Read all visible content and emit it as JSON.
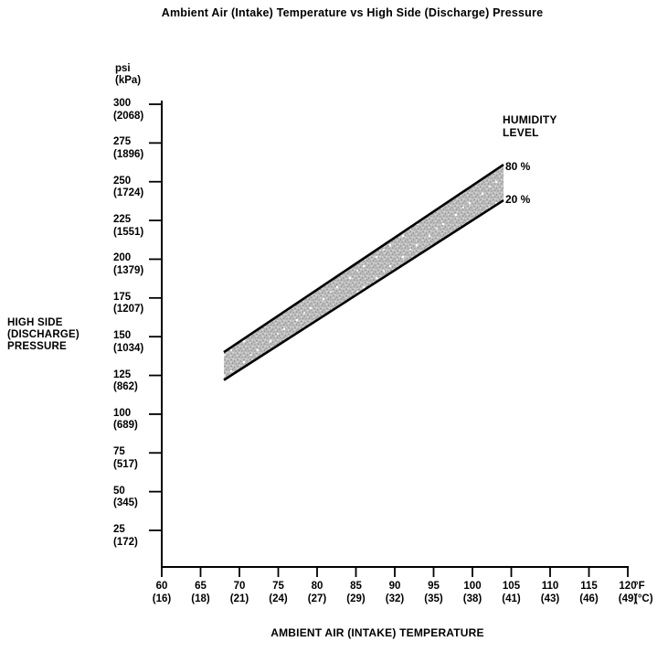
{
  "title": "Ambient Air (Intake) Temperature vs  High Side (Discharge) Pressure",
  "chart_data": {
    "type": "area",
    "title": "Ambient Air (Intake) Temperature vs High Side (Discharge) Pressure",
    "xlabel": "AMBIENT AIR (INTAKE) TEMPERATURE",
    "ylabel": "HIGH SIDE (DISCHARGE) PRESSURE",
    "grid": false,
    "legend_position": "upper right",
    "x_axis": {
      "unit_primary": "°F",
      "unit_secondary": "(°C)",
      "range_f": [
        60,
        120
      ],
      "ticks": [
        {
          "f": 60,
          "c": 16
        },
        {
          "f": 65,
          "c": 18
        },
        {
          "f": 70,
          "c": 21
        },
        {
          "f": 75,
          "c": 24
        },
        {
          "f": 80,
          "c": 27
        },
        {
          "f": 85,
          "c": 29
        },
        {
          "f": 90,
          "c": 32
        },
        {
          "f": 95,
          "c": 35
        },
        {
          "f": 100,
          "c": 38
        },
        {
          "f": 105,
          "c": 41
        },
        {
          "f": 110,
          "c": 43
        },
        {
          "f": 115,
          "c": 46
        },
        {
          "f": 120,
          "c": 49
        }
      ]
    },
    "y_axis": {
      "unit_primary": "psi",
      "unit_secondary": "(kPa)",
      "range_psi": [
        0,
        300
      ],
      "ticks": [
        {
          "psi": 300,
          "kpa": 2068
        },
        {
          "psi": 275,
          "kpa": 1896
        },
        {
          "psi": 250,
          "kpa": 1724
        },
        {
          "psi": 225,
          "kpa": 1551
        },
        {
          "psi": 200,
          "kpa": 1379
        },
        {
          "psi": 175,
          "kpa": 1207
        },
        {
          "psi": 150,
          "kpa": 1034
        },
        {
          "psi": 125,
          "kpa": 862
        },
        {
          "psi": 100,
          "kpa": 689
        },
        {
          "psi": 75,
          "kpa": 517
        },
        {
          "psi": 50,
          "kpa": 345
        },
        {
          "psi": 25,
          "kpa": 172
        }
      ]
    },
    "legend_heading_line1": "HUMIDITY",
    "legend_heading_line2": "LEVEL",
    "series": [
      {
        "name": "80 %",
        "humidity_percent": 80,
        "points_f_psi": [
          [
            68,
            140
          ],
          [
            104,
            261
          ]
        ]
      },
      {
        "name": "20 %",
        "humidity_percent": 20,
        "points_f_psi": [
          [
            68,
            122
          ],
          [
            104,
            238
          ]
        ]
      }
    ],
    "band_description": "stippled gray band between 20% and 80% humidity lines"
  },
  "labels": {
    "y_title_line1": "HIGH SIDE",
    "y_title_line2": "(DISCHARGE)",
    "y_title_line3": "PRESSURE",
    "x_title": "AMBIENT AIR (INTAKE) TEMPERATURE"
  },
  "colors": {
    "ink": "#000000",
    "background": "#ffffff",
    "band_fill_base": "#bdbdbd",
    "band_fill_dark_dot": "#8f8f8f",
    "band_fill_light_dot": "#ececec"
  }
}
